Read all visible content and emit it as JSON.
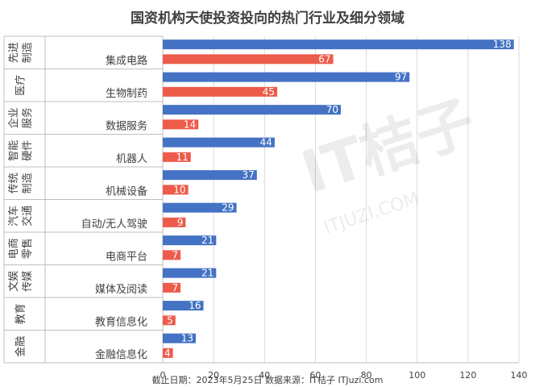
{
  "chart_data": {
    "type": "bar",
    "title": "国资机构天使投资投向的热门行业及细分领域",
    "xlim": [
      0,
      140
    ],
    "x_ticks": [
      "0",
      "20",
      "40",
      "60",
      "80",
      "100",
      "120",
      "140"
    ],
    "grid": true,
    "colors": {
      "sector": "#4472c4",
      "subsector": "#ed5b4b"
    },
    "groups": [
      {
        "sector": "先进\n制造",
        "subsector": "集成电路",
        "sector_value": 138,
        "subsector_value": 67
      },
      {
        "sector": "医疗",
        "subsector": "生物制药",
        "sector_value": 97,
        "subsector_value": 45
      },
      {
        "sector": "企业\n服务",
        "subsector": "数据服务",
        "sector_value": 70,
        "subsector_value": 14
      },
      {
        "sector": "智能\n硬件",
        "subsector": "机器人",
        "sector_value": 44,
        "subsector_value": 11
      },
      {
        "sector": "传统\n制造",
        "subsector": "机械设备",
        "sector_value": 37,
        "subsector_value": 10
      },
      {
        "sector": "汽车\n交通",
        "subsector": "自动/无人驾驶",
        "sector_value": 29,
        "subsector_value": 9
      },
      {
        "sector": "电商\n零售",
        "subsector": "电商平台",
        "sector_value": 21,
        "subsector_value": 7
      },
      {
        "sector": "文娱\n传媒",
        "subsector": "媒体及阅读",
        "sector_value": 21,
        "subsector_value": 7
      },
      {
        "sector": "教育",
        "subsector": "教育信息化",
        "sector_value": 16,
        "subsector_value": 5
      },
      {
        "sector": "金融",
        "subsector": "金融信息化",
        "sector_value": 13,
        "subsector_value": 4
      }
    ],
    "footer": "截止日期：2023年5月25日    数据来源：IT桔子 ITJuzi.com"
  },
  "watermark": {
    "brand": "IT桔子",
    "url": "ITJUZI.COM"
  }
}
